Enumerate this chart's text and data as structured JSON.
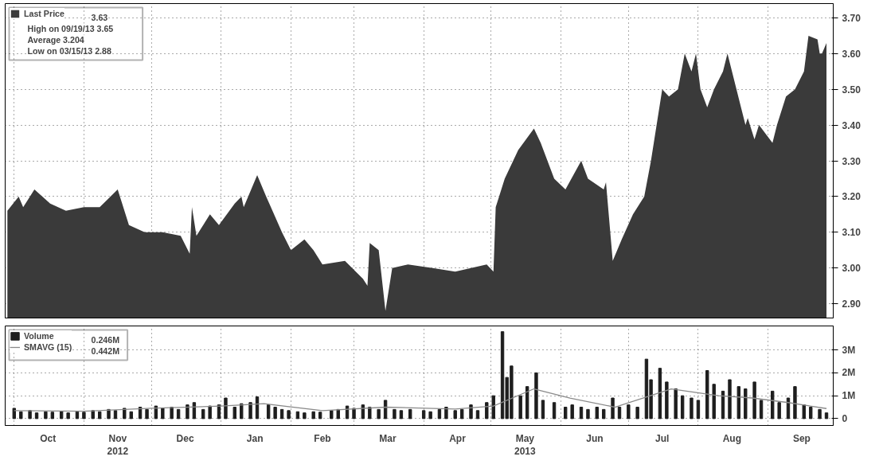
{
  "chart_data": [
    {
      "type": "area",
      "tick_labels": "y",
      "grid": true,
      "legend": "top left",
      "xlim": [
        "2012-09-27",
        "2013-09-30"
      ],
      "xticks": [
        {
          "value": "2012-10-01",
          "label": null
        },
        {
          "value": "2012-11-01",
          "label": null
        },
        {
          "value": "2012-12-01",
          "label": null
        },
        {
          "value": "2013-01-01",
          "label": null
        },
        {
          "value": "2013-02-01",
          "label": null
        },
        {
          "value": "2013-03-01",
          "label": null
        },
        {
          "value": "2013-04-01",
          "label": null
        },
        {
          "value": "2013-05-01",
          "label": null
        },
        {
          "value": "2013-06-01",
          "label": null
        },
        {
          "value": "2013-07-01",
          "label": null
        },
        {
          "value": "2013-08-01",
          "label": null
        },
        {
          "value": "2013-09-01",
          "label": null
        }
      ],
      "ylim": [
        2.86,
        3.74
      ],
      "yticks": [
        {
          "value": 2.9,
          "label": "2.90"
        },
        {
          "value": 3.0,
          "label": "3.00"
        },
        {
          "value": 3.1,
          "label": "3.10"
        },
        {
          "value": 3.2,
          "label": "3.20"
        },
        {
          "value": 3.3,
          "label": "3.30"
        },
        {
          "value": 3.4,
          "label": "3.40"
        },
        {
          "value": 3.5,
          "label": "3.50"
        },
        {
          "value": 3.6,
          "label": "3.60"
        },
        {
          "value": 3.7,
          "label": "3.70"
        }
      ],
      "annotations": [
        "3.63",
        "High on 09/19/13 3.65",
        "Average 3.204",
        "Low on 03/15/13 2.88"
      ],
      "series": [
        {
          "name": "Last Price",
          "color": "#3a3a3a",
          "x": [
            "2012-09-28",
            "2012-10-03",
            "2012-10-05",
            "2012-10-10",
            "2012-10-17",
            "2012-10-24",
            "2012-11-01",
            "2012-11-08",
            "2012-11-16",
            "2012-11-21",
            "2012-11-28",
            "2012-12-06",
            "2012-12-14",
            "2012-12-18",
            "2012-12-19",
            "2012-12-21",
            "2012-12-27",
            "2012-12-31",
            "2013-01-07",
            "2013-01-10",
            "2013-01-11",
            "2013-01-17",
            "2013-01-21",
            "2013-01-28",
            "2013-02-01",
            "2013-02-07",
            "2013-02-11",
            "2013-02-15",
            "2013-02-25",
            "2013-03-05",
            "2013-03-07",
            "2013-03-08",
            "2013-03-12",
            "2013-03-15",
            "2013-03-18",
            "2013-03-25",
            "2013-04-05",
            "2013-04-15",
            "2013-04-22",
            "2013-04-29",
            "2013-05-02",
            "2013-05-03",
            "2013-05-07",
            "2013-05-13",
            "2013-05-20",
            "2013-05-23",
            "2013-05-29",
            "2013-06-03",
            "2013-06-10",
            "2013-06-13",
            "2013-06-20",
            "2013-06-21",
            "2013-06-24",
            "2013-06-28",
            "2013-07-03",
            "2013-07-08",
            "2013-07-11",
            "2013-07-16",
            "2013-07-19",
            "2013-07-23",
            "2013-07-26",
            "2013-07-29",
            "2013-07-31",
            "2013-08-02",
            "2013-08-05",
            "2013-08-08",
            "2013-08-12",
            "2013-08-14",
            "2013-08-16",
            "2013-08-20",
            "2013-08-22",
            "2013-08-23",
            "2013-08-26",
            "2013-08-28",
            "2013-09-03",
            "2013-09-05",
            "2013-09-09",
            "2013-09-13",
            "2013-09-17",
            "2013-09-19",
            "2013-09-23",
            "2013-09-24",
            "2013-09-25",
            "2013-09-27"
          ],
          "values": [
            3.16,
            3.2,
            3.17,
            3.22,
            3.18,
            3.16,
            3.17,
            3.17,
            3.22,
            3.12,
            3.1,
            3.1,
            3.09,
            3.04,
            3.17,
            3.09,
            3.15,
            3.12,
            3.18,
            3.2,
            3.17,
            3.26,
            3.2,
            3.1,
            3.05,
            3.08,
            3.05,
            3.01,
            3.02,
            2.97,
            2.95,
            3.07,
            3.05,
            2.88,
            3.0,
            3.01,
            3.0,
            2.99,
            3.0,
            3.01,
            2.99,
            3.17,
            3.25,
            3.33,
            3.39,
            3.35,
            3.25,
            3.22,
            3.3,
            3.25,
            3.22,
            3.24,
            3.02,
            3.08,
            3.15,
            3.2,
            3.3,
            3.5,
            3.48,
            3.5,
            3.6,
            3.55,
            3.6,
            3.5,
            3.45,
            3.5,
            3.55,
            3.6,
            3.55,
            3.45,
            3.4,
            3.42,
            3.36,
            3.4,
            3.35,
            3.4,
            3.48,
            3.5,
            3.55,
            3.65,
            3.64,
            3.6,
            3.6,
            3.63
          ]
        }
      ]
    },
    {
      "type": "bar",
      "grid": true,
      "legend": "top left",
      "xlim": [
        "2012-09-27",
        "2013-09-30"
      ],
      "xticks": [
        {
          "value": "2012-10-01",
          "label": null
        },
        {
          "value": "2012-10-16",
          "label": "Oct"
        },
        {
          "value": "2012-11-01",
          "label": null
        },
        {
          "value": "2012-11-16",
          "label": "Nov\n2012"
        },
        {
          "value": "2012-12-01",
          "label": null
        },
        {
          "value": "2012-12-16",
          "label": "Dec"
        },
        {
          "value": "2013-01-01",
          "label": null
        },
        {
          "value": "2013-01-16",
          "label": "Jan"
        },
        {
          "value": "2013-02-01",
          "label": null
        },
        {
          "value": "2013-02-15",
          "label": "Feb"
        },
        {
          "value": "2013-03-01",
          "label": null
        },
        {
          "value": "2013-03-16",
          "label": "Mar"
        },
        {
          "value": "2013-04-01",
          "label": null
        },
        {
          "value": "2013-04-16",
          "label": "Apr"
        },
        {
          "value": "2013-05-01",
          "label": null
        },
        {
          "value": "2013-05-16",
          "label": "May\n2013"
        },
        {
          "value": "2013-06-01",
          "label": null
        },
        {
          "value": "2013-06-16",
          "label": "Jun"
        },
        {
          "value": "2013-07-01",
          "label": null
        },
        {
          "value": "2013-07-16",
          "label": "Jul"
        },
        {
          "value": "2013-08-01",
          "label": null
        },
        {
          "value": "2013-08-16",
          "label": "Aug"
        },
        {
          "value": "2013-09-01",
          "label": null
        },
        {
          "value": "2013-09-16",
          "label": "Sep"
        }
      ],
      "ylim": [
        -0.3,
        4.05
      ],
      "yticks": [
        {
          "value": 0,
          "label": "0"
        },
        {
          "value": 1,
          "label": "1M"
        },
        {
          "value": 2,
          "label": "2M"
        },
        {
          "value": 3,
          "label": "3M"
        }
      ],
      "annotations": [
        "0.246M",
        "0.442M"
      ],
      "series": [
        {
          "name": "Volume",
          "color": "#1e1e1e",
          "x": [
            "2012-10-01",
            "2012-10-04",
            "2012-10-08",
            "2012-10-11",
            "2012-10-15",
            "2012-10-18",
            "2012-10-22",
            "2012-10-25",
            "2012-10-29",
            "2012-11-01",
            "2012-11-05",
            "2012-11-08",
            "2012-11-12",
            "2012-11-15",
            "2012-11-19",
            "2012-11-22",
            "2012-11-26",
            "2012-11-29",
            "2012-12-03",
            "2012-12-06",
            "2012-12-10",
            "2012-12-13",
            "2012-12-17",
            "2012-12-20",
            "2012-12-24",
            "2012-12-27",
            "2012-12-31",
            "2013-01-03",
            "2013-01-07",
            "2013-01-10",
            "2013-01-14",
            "2013-01-17",
            "2013-01-22",
            "2013-01-25",
            "2013-01-28",
            "2013-01-31",
            "2013-02-04",
            "2013-02-07",
            "2013-02-11",
            "2013-02-14",
            "2013-02-19",
            "2013-02-22",
            "2013-02-26",
            "2013-03-01",
            "2013-03-05",
            "2013-03-08",
            "2013-03-12",
            "2013-03-15",
            "2013-03-19",
            "2013-03-22",
            "2013-03-26",
            "2013-04-01",
            "2013-04-04",
            "2013-04-08",
            "2013-04-11",
            "2013-04-15",
            "2013-04-18",
            "2013-04-22",
            "2013-04-25",
            "2013-04-29",
            "2013-05-02",
            "2013-05-06",
            "2013-05-08",
            "2013-05-10",
            "2013-05-14",
            "2013-05-17",
            "2013-05-21",
            "2013-05-24",
            "2013-05-29",
            "2013-06-03",
            "2013-06-06",
            "2013-06-10",
            "2013-06-13",
            "2013-06-17",
            "2013-06-20",
            "2013-06-24",
            "2013-06-27",
            "2013-07-01",
            "2013-07-05",
            "2013-07-09",
            "2013-07-11",
            "2013-07-15",
            "2013-07-18",
            "2013-07-22",
            "2013-07-25",
            "2013-07-29",
            "2013-08-01",
            "2013-08-05",
            "2013-08-08",
            "2013-08-12",
            "2013-08-15",
            "2013-08-19",
            "2013-08-22",
            "2013-08-26",
            "2013-08-29",
            "2013-09-03",
            "2013-09-06",
            "2013-09-10",
            "2013-09-13",
            "2013-09-17",
            "2013-09-20",
            "2013-09-24",
            "2013-09-27"
          ],
          "values": [
            0.45,
            0.3,
            0.35,
            0.25,
            0.3,
            0.28,
            0.32,
            0.25,
            0.3,
            0.28,
            0.35,
            0.3,
            0.4,
            0.35,
            0.45,
            0.3,
            0.5,
            0.4,
            0.55,
            0.45,
            0.5,
            0.4,
            0.6,
            0.7,
            0.4,
            0.55,
            0.6,
            0.9,
            0.5,
            0.65,
            0.7,
            0.95,
            0.6,
            0.5,
            0.4,
            0.35,
            0.3,
            0.25,
            0.3,
            0.28,
            0.35,
            0.4,
            0.55,
            0.45,
            0.6,
            0.5,
            0.4,
            0.8,
            0.4,
            0.35,
            0.4,
            0.35,
            0.3,
            0.4,
            0.5,
            0.35,
            0.4,
            0.6,
            0.35,
            0.7,
            1.0,
            3.8,
            1.8,
            2.3,
            1.0,
            1.4,
            2.0,
            0.8,
            0.7,
            0.5,
            0.6,
            0.5,
            0.4,
            0.5,
            0.4,
            0.9,
            0.5,
            0.6,
            0.5,
            2.6,
            1.7,
            2.2,
            1.6,
            1.3,
            1.0,
            0.9,
            0.8,
            2.1,
            1.5,
            1.2,
            1.7,
            1.4,
            1.3,
            1.6,
            0.8,
            1.2,
            0.7,
            0.9,
            1.4,
            0.6,
            0.5,
            0.4,
            0.25
          ]
        },
        {
          "name": "SMAVG (15)",
          "type": "line",
          "color": "#8a8a8a",
          "x": [
            "2012-10-01",
            "2012-11-01",
            "2012-12-01",
            "2013-01-01",
            "2013-01-20",
            "2013-02-15",
            "2013-03-15",
            "2013-04-15",
            "2013-05-02",
            "2013-05-20",
            "2013-06-05",
            "2013-06-25",
            "2013-07-20",
            "2013-08-10",
            "2013-08-25",
            "2013-09-10",
            "2013-09-27"
          ],
          "values": [
            0.35,
            0.32,
            0.45,
            0.55,
            0.65,
            0.35,
            0.5,
            0.42,
            0.55,
            1.3,
            0.9,
            0.5,
            1.3,
            1.0,
            0.9,
            0.7,
            0.44
          ]
        }
      ]
    }
  ]
}
